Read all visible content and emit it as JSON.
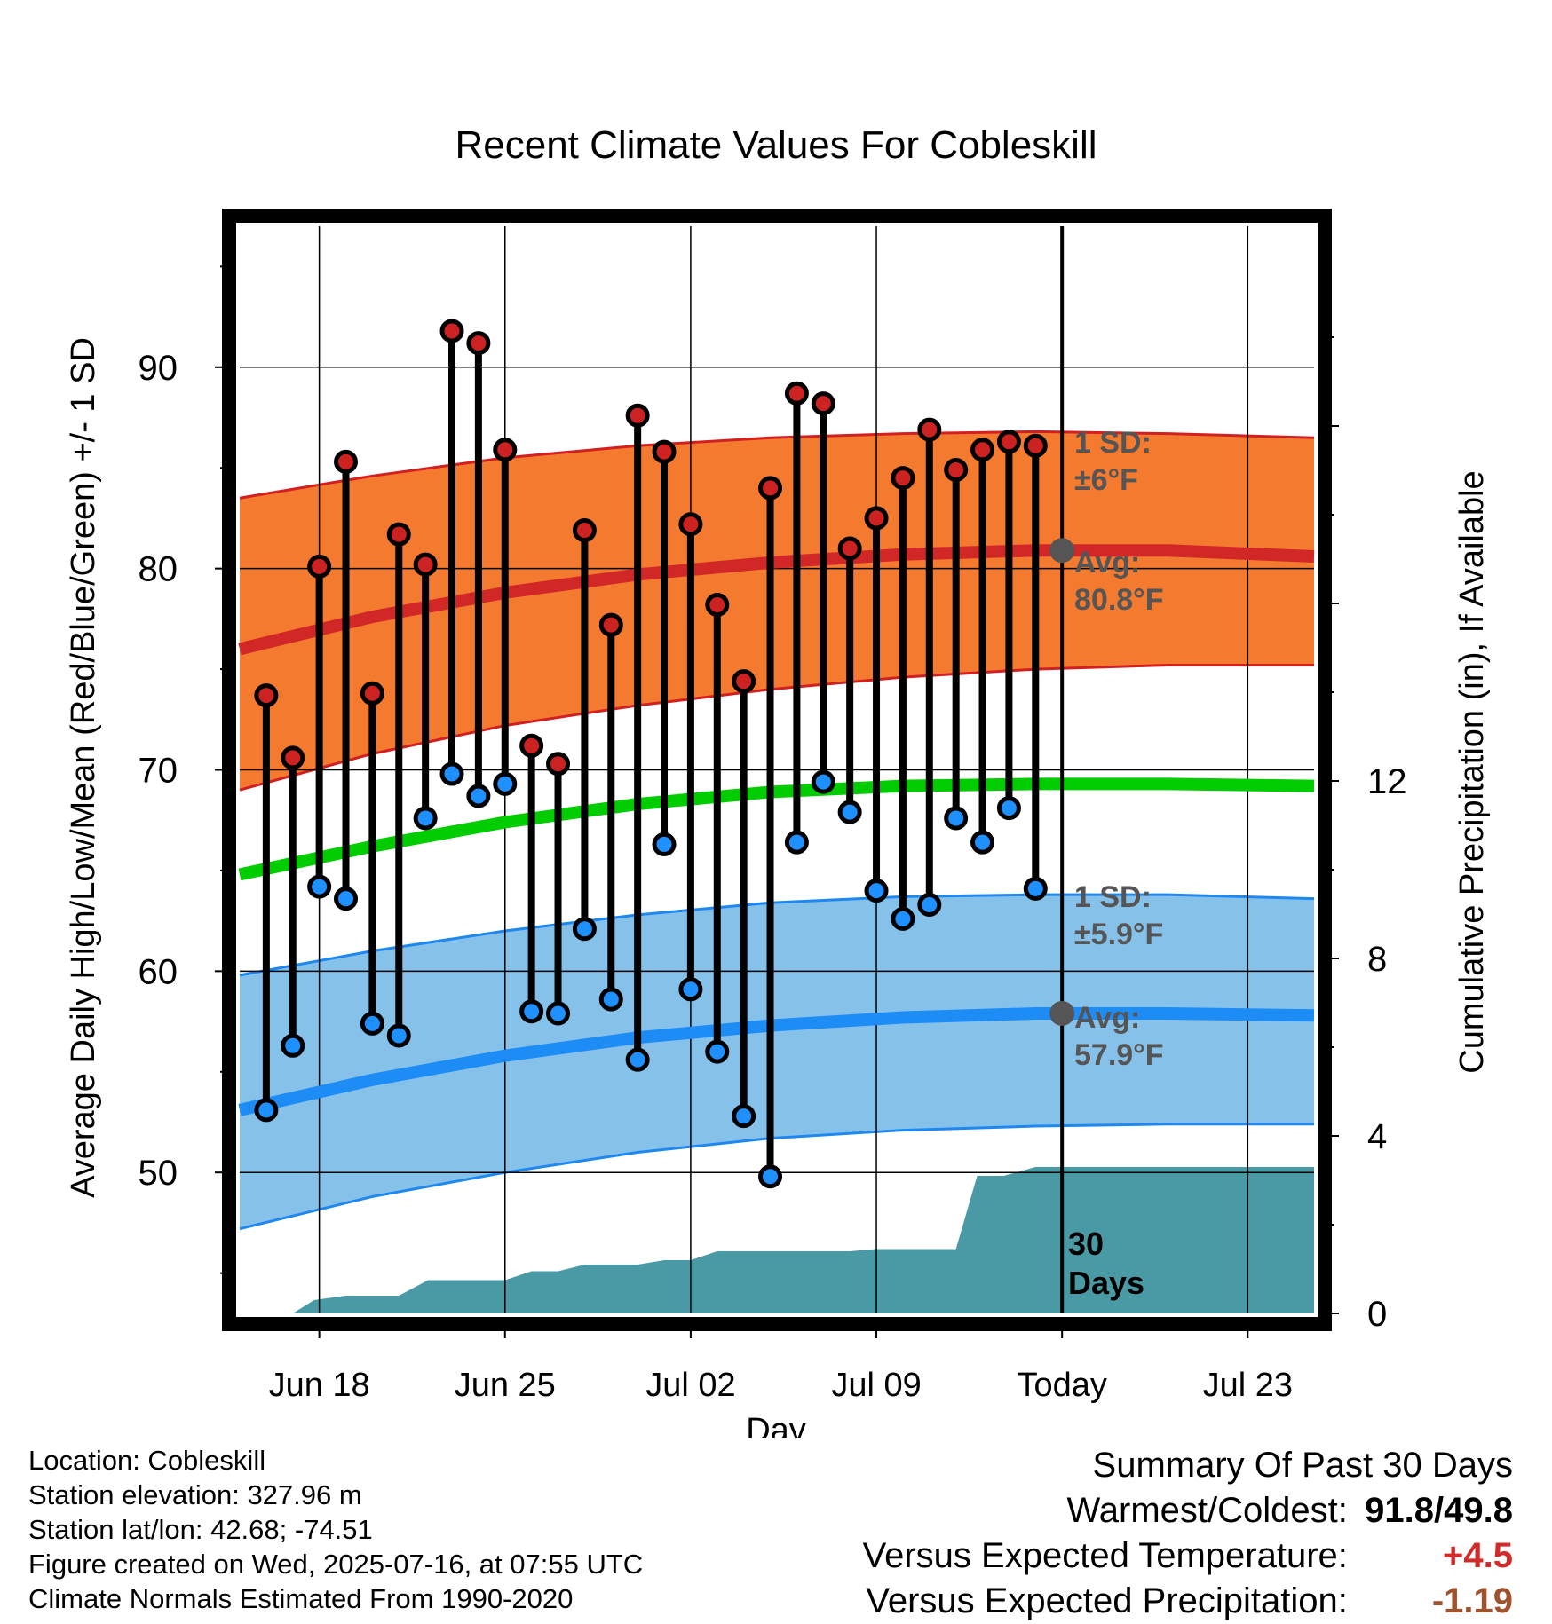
{
  "colors": {
    "high_band": "#f47a30",
    "high_band_edge": "#d22020",
    "high_avg_line": "#d22727",
    "low_band": "#86c1ea",
    "low_band_edge": "#1e88f0",
    "low_avg_line": "#1e8cf5",
    "mean_line": "#00cc00",
    "precip_fill": "#4a9aa5",
    "high_marker": "#cc2222",
    "low_marker": "#1e90ff",
    "annotation": "#555555",
    "warm_value": "#d22b2b",
    "precip_value": "#a0522d"
  },
  "chart_data": {
    "type": "line",
    "title": "Recent Climate Values For Cobleskill",
    "xlabel": "Day",
    "ylabel": "Average Daily High/Low/Mean (Red/Blue/Green) +/- 1 SD",
    "y2label": "Cumulative Precipitation (in), If Available",
    "xtick_labels": [
      "Jun 18",
      "Jun 25",
      "Jul 02",
      "Jul 09",
      "Today",
      "Jul 23"
    ],
    "xtick_days": [
      3,
      10,
      17,
      24,
      31,
      38
    ],
    "xlim_days": [
      0,
      40.5
    ],
    "ylim": [
      43,
      97
    ],
    "yticks": [
      50,
      60,
      70,
      80,
      90
    ],
    "y2lim": [
      0,
      24.5
    ],
    "y2ticks": [
      0,
      4,
      8,
      12
    ],
    "today_day": 31,
    "today_label": "30\nDays",
    "grid": true,
    "normals": {
      "x_days": [
        0,
        5,
        10,
        15,
        20,
        25,
        30,
        35,
        40.5
      ],
      "high_avg": [
        76.0,
        77.6,
        78.8,
        79.7,
        80.3,
        80.7,
        80.9,
        80.9,
        80.6
      ],
      "high_sd_upper": [
        83.5,
        84.6,
        85.5,
        86.1,
        86.5,
        86.7,
        86.8,
        86.7,
        86.5
      ],
      "high_sd_lower": [
        69.0,
        70.8,
        72.2,
        73.2,
        74.0,
        74.6,
        75.0,
        75.2,
        75.2
      ],
      "mean_avg": [
        64.8,
        66.2,
        67.4,
        68.3,
        68.9,
        69.2,
        69.3,
        69.3,
        69.2
      ],
      "low_avg": [
        53.1,
        54.6,
        55.8,
        56.7,
        57.3,
        57.7,
        57.9,
        57.9,
        57.8
      ],
      "low_sd_upper": [
        59.8,
        61.0,
        62.0,
        62.8,
        63.4,
        63.7,
        63.8,
        63.8,
        63.6
      ],
      "low_sd_lower": [
        47.2,
        48.8,
        50.0,
        51.0,
        51.7,
        52.1,
        52.3,
        52.4,
        52.4
      ]
    },
    "daily": {
      "days": [
        1,
        2,
        3,
        4,
        5,
        6,
        7,
        8,
        9,
        10,
        11,
        12,
        13,
        14,
        15,
        16,
        17,
        18,
        19,
        20,
        21,
        22,
        23,
        24,
        25,
        26,
        27,
        28,
        29,
        30
      ],
      "highs": [
        73.7,
        70.6,
        80.1,
        85.3,
        73.8,
        81.7,
        80.2,
        91.8,
        91.2,
        85.9,
        71.2,
        70.3,
        81.9,
        77.2,
        87.6,
        85.8,
        82.2,
        78.2,
        74.4,
        84.0,
        88.7,
        88.2,
        81.0,
        82.5,
        84.5,
        86.9,
        84.9,
        85.9,
        86.3,
        86.1
      ],
      "lows": [
        53.1,
        56.3,
        64.2,
        63.6,
        57.4,
        56.8,
        67.6,
        69.8,
        68.7,
        69.3,
        58.0,
        57.9,
        62.1,
        58.6,
        55.6,
        66.3,
        59.1,
        56.0,
        52.8,
        49.8,
        66.4,
        69.4,
        67.9,
        64.0,
        62.6,
        63.3,
        67.6,
        66.4,
        68.1,
        64.1
      ]
    },
    "precip_cumulative": {
      "x_days": [
        2,
        2.8,
        4,
        6,
        7.1,
        8,
        10,
        11,
        12,
        13,
        15,
        16,
        17,
        18,
        20,
        23,
        24,
        25,
        26,
        27,
        27.8,
        28.8,
        30,
        33,
        40.5
      ],
      "values": [
        0.0,
        0.3,
        0.4,
        0.4,
        0.75,
        0.75,
        0.75,
        0.95,
        0.95,
        1.1,
        1.1,
        1.2,
        1.2,
        1.4,
        1.4,
        1.4,
        1.45,
        1.45,
        1.45,
        1.45,
        3.1,
        3.1,
        3.3,
        3.3,
        3.3
      ]
    },
    "annotations": {
      "high_sd": "1 SD:",
      "high_sd_value": "±6°F",
      "high_avg": "Avg:",
      "high_avg_value": "80.8°F",
      "low_sd": "1 SD:",
      "low_sd_value": "±5.9°F",
      "low_avg": "Avg:",
      "low_avg_value": "57.9°F"
    }
  },
  "info": {
    "location": "Location: Cobleskill",
    "elevation": "Station elevation: 327.96 m",
    "latlon": "Station lat/lon: 42.68; -74.51",
    "created": "Figure created on Wed, 2025-07-16, at 07:55 UTC",
    "normals": "Climate Normals Estimated From 1990-2020"
  },
  "summary": {
    "title": "Summary Of Past 30 Days",
    "warm_cold_label": "Warmest/Coldest:",
    "warmest": "91.8",
    "coldest": "49.8",
    "temp_label": "Versus Expected Temperature:",
    "temp_value": "+4.5",
    "precip_label": "Versus Expected Precipitation:",
    "precip_value": "-1.19"
  }
}
